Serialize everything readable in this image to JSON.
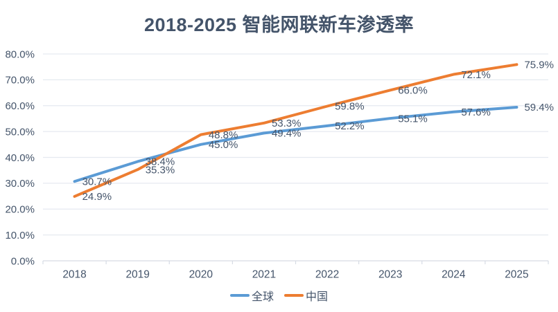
{
  "title": "2018-2025 智能网联新车渗透率",
  "chart_data": {
    "type": "line",
    "title": "2018-2025 智能网联新车渗透率",
    "categories": [
      "2018",
      "2019",
      "2020",
      "2021",
      "2022",
      "2023",
      "2024",
      "2025"
    ],
    "series": [
      {
        "name": "全球",
        "color": "#5B9BD5",
        "values": [
          30.7,
          38.4,
          45.0,
          49.4,
          52.2,
          55.1,
          57.6,
          59.4
        ]
      },
      {
        "name": "中国",
        "color": "#ED7D31",
        "values": [
          24.9,
          35.3,
          48.8,
          53.3,
          59.8,
          66.0,
          72.1,
          75.9
        ]
      }
    ],
    "ylim": [
      0,
      80
    ],
    "ytick_step": 10,
    "ytick_labels": [
      "0.0%",
      "10.0%",
      "20.0%",
      "30.0%",
      "40.0%",
      "50.0%",
      "60.0%",
      "70.0%",
      "80.0%"
    ],
    "data_label_suffix": "%",
    "grid": true,
    "legend_position": "bottom"
  },
  "colors": {
    "text": "#44546A",
    "gridline": "#E5E9F0",
    "axis": "#D6DBE4",
    "background": "#FFFFFF"
  }
}
